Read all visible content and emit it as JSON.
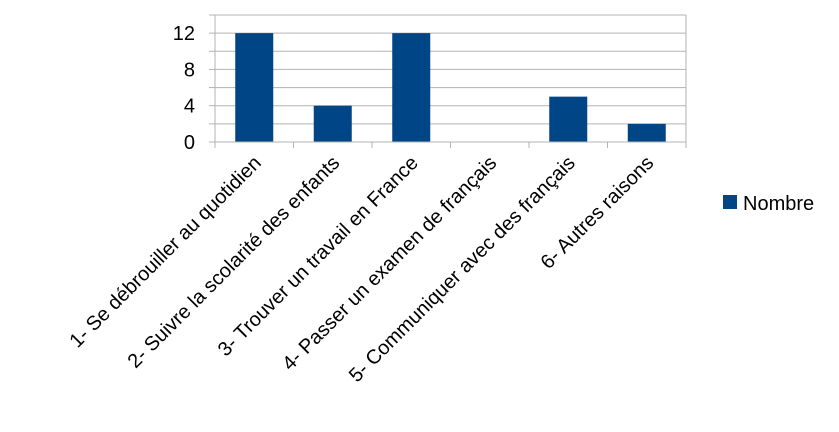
{
  "chart_data": {
    "type": "bar",
    "categories": [
      "1- Se débrouiller au quotidien",
      "2- Suivre la scolarité des enfants",
      "3- Trouver un travail en France",
      "4- Passer un examen de français",
      "5- Communiquer avec des français",
      "6- Autres raisons"
    ],
    "series": [
      {
        "name": "Nombre",
        "values": [
          12,
          4,
          12,
          0,
          5,
          2
        ],
        "color": "#004586"
      }
    ],
    "yticks": [
      0,
      4,
      8,
      12
    ],
    "ylim": [
      0,
      14
    ],
    "grid": true,
    "legend": "right"
  }
}
